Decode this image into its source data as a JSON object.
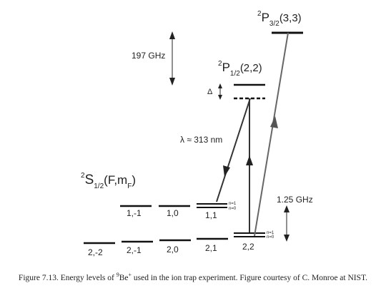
{
  "upper_levels": {
    "p32": {
      "prefix": "2",
      "letter": "P",
      "subscript": "3/2",
      "numbers": "(3,3)"
    },
    "p12": {
      "prefix": "2",
      "letter": "P",
      "subscript": "1/2",
      "numbers": "(2,2)"
    }
  },
  "ground_label": {
    "prefix": "2",
    "letter": "S",
    "subscript": "1/2",
    "args_open": "(F,m",
    "args_sub": "F",
    "args_close": ")"
  },
  "f1_levels": [
    "1,-1",
    "1,0",
    "1,1"
  ],
  "f2_levels": [
    "2,-2",
    "2,-1",
    "2,0",
    "2,1",
    "2,2"
  ],
  "motional_labels": {
    "upper": "n=1",
    "lower": "n=0"
  },
  "annotations": {
    "fine_structure": "197 GHz",
    "detuning": "Δ",
    "wavelength": "λ ≈ 313 nm",
    "hyperfine": "1.25 GHz"
  },
  "caption": {
    "before": "Figure 7.13. Energy levels of ",
    "mass_number": "9",
    "element": "Be",
    "charge": "+",
    "after": " used in the ion trap experiment. Figure courtesy of C. Monroe at NIST."
  },
  "colors": {
    "level_line": "#111111",
    "beam_arrow": "#555555",
    "raman_arrow": "#333333"
  }
}
